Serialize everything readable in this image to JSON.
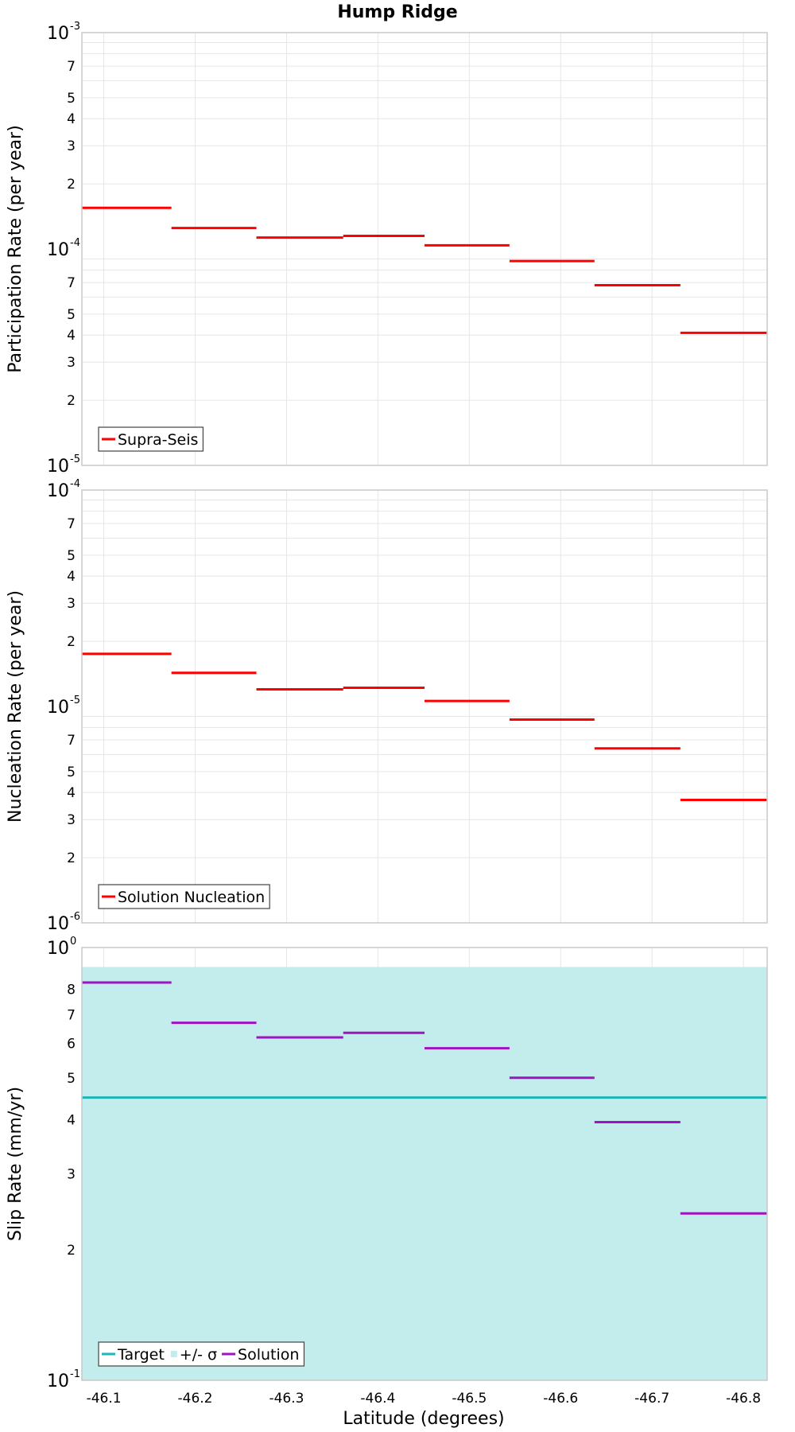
{
  "chart_data": {
    "title": "Hump Ridge",
    "xlabel": "Latitude (degrees)",
    "x_ticks": [
      "-46.1",
      "-46.2",
      "-46.3",
      "-46.4",
      "-46.5",
      "-46.6",
      "-46.7",
      "-46.8"
    ],
    "xlim": [
      -46.076,
      -46.826
    ],
    "panels": [
      {
        "type": "line",
        "ylabel": "Participation Rate (per year)",
        "yscale": "log",
        "ylim": [
          1e-05,
          0.001
        ],
        "decade_labels": [
          "10",
          "-5",
          "10",
          "-4",
          "10",
          "-3"
        ],
        "minor_tick_labels": [
          "2",
          "3",
          "4",
          "5",
          "7"
        ],
        "grid": true,
        "legend": "bottom-left",
        "series": [
          {
            "name": "Supra-Seis",
            "color": "#ff0000",
            "style": "step",
            "segments": [
              {
                "x": [
                  -46.076,
                  -46.174
                ],
                "y": 0.000155
              },
              {
                "x": [
                  -46.174,
                  -46.267
                ],
                "y": 0.000125
              },
              {
                "x": [
                  -46.267,
                  -46.362
                ],
                "y": 0.000113
              },
              {
                "x": [
                  -46.362,
                  -46.451
                ],
                "y": 0.000115
              },
              {
                "x": [
                  -46.451,
                  -46.544
                ],
                "y": 0.000104
              },
              {
                "x": [
                  -46.544,
                  -46.637
                ],
                "y": 8.8e-05
              },
              {
                "x": [
                  -46.637,
                  -46.731
                ],
                "y": 6.8e-05
              },
              {
                "x": [
                  -46.731,
                  -46.826
                ],
                "y": 4.1e-05
              }
            ]
          }
        ]
      },
      {
        "type": "line",
        "ylabel": "Nucleation Rate (per year)",
        "yscale": "log",
        "ylim": [
          1e-06,
          0.0001
        ],
        "decade_labels": [
          "10",
          "-6",
          "10",
          "-5",
          "10",
          "-4"
        ],
        "minor_tick_labels": [
          "2",
          "3",
          "4",
          "5",
          "7"
        ],
        "grid": true,
        "legend": "bottom-left",
        "series": [
          {
            "name": "Solution Nucleation",
            "color": "#ff0000",
            "style": "step",
            "segments": [
              {
                "x": [
                  -46.076,
                  -46.174
                ],
                "y": 1.75e-05
              },
              {
                "x": [
                  -46.174,
                  -46.267
                ],
                "y": 1.43e-05
              },
              {
                "x": [
                  -46.267,
                  -46.362
                ],
                "y": 1.2e-05
              },
              {
                "x": [
                  -46.362,
                  -46.451
                ],
                "y": 1.22e-05
              },
              {
                "x": [
                  -46.451,
                  -46.544
                ],
                "y": 1.06e-05
              },
              {
                "x": [
                  -46.544,
                  -46.637
                ],
                "y": 8.7e-06
              },
              {
                "x": [
                  -46.637,
                  -46.731
                ],
                "y": 6.4e-06
              },
              {
                "x": [
                  -46.731,
                  -46.826
                ],
                "y": 3.7e-06
              }
            ]
          }
        ]
      },
      {
        "type": "line",
        "ylabel": "Slip Rate (mm/yr)",
        "yscale": "log",
        "ylim": [
          0.1,
          1
        ],
        "decade_labels": [
          "10",
          "-1",
          "10",
          "0"
        ],
        "minor_tick_labels": [
          "2",
          "3",
          "4",
          "5",
          "6",
          "7",
          "8"
        ],
        "grid": true,
        "legend": "bottom-left",
        "series": [
          {
            "name": "Target",
            "color": "#1fb5b5",
            "style": "hline",
            "segments": [
              {
                "x": [
                  -46.076,
                  -46.826
                ],
                "y": 0.45
              }
            ]
          },
          {
            "name": "+/- σ",
            "color": "#c3ecec",
            "style": "band",
            "band": [
              0.1,
              0.9
            ]
          },
          {
            "name": "Solution",
            "color": "#9f14c0",
            "style": "step",
            "segments": [
              {
                "x": [
                  -46.076,
                  -46.174
                ],
                "y": 0.83
              },
              {
                "x": [
                  -46.174,
                  -46.267
                ],
                "y": 0.67
              },
              {
                "x": [
                  -46.267,
                  -46.362
                ],
                "y": 0.62
              },
              {
                "x": [
                  -46.362,
                  -46.451
                ],
                "y": 0.635
              },
              {
                "x": [
                  -46.451,
                  -46.544
                ],
                "y": 0.585
              },
              {
                "x": [
                  -46.544,
                  -46.637
                ],
                "y": 0.5
              },
              {
                "x": [
                  -46.637,
                  -46.731
                ],
                "y": 0.395
              },
              {
                "x": [
                  -46.731,
                  -46.826
                ],
                "y": 0.243
              }
            ]
          }
        ]
      }
    ]
  }
}
